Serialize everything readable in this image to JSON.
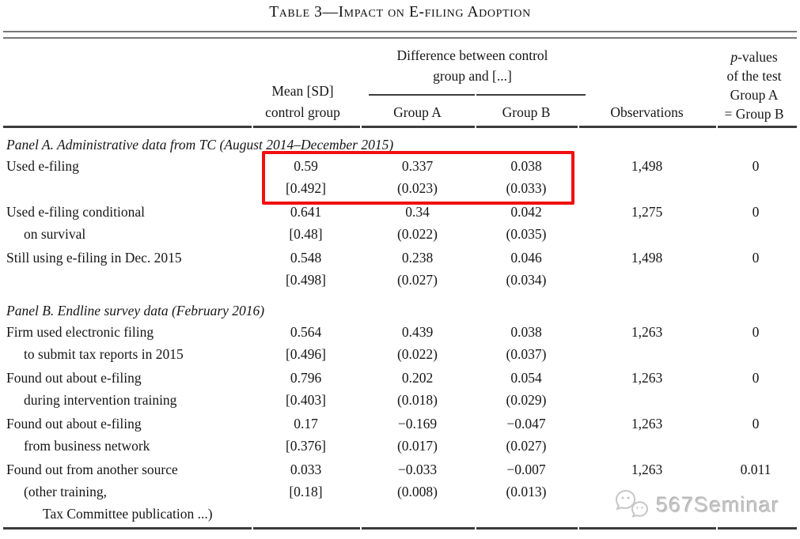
{
  "title": "Table 3—Impact on E-filing Adoption",
  "header": {
    "mean_sd": [
      "Mean [SD]",
      "control group"
    ],
    "diff_group": [
      "Difference between control",
      "group and [...]"
    ],
    "group_a": "Group A",
    "group_b": "Group B",
    "observations": "Observations",
    "pvalues": [
      "p-values",
      "of the test",
      "Group A",
      "= Group B"
    ]
  },
  "panels": [
    {
      "heading": "Panel A.  Administrative data from TC (August 2014–December 2015)",
      "rows": [
        {
          "label": [
            "Used e-filing"
          ],
          "mean": "0.59",
          "sd": "[0.492]",
          "a": "0.337",
          "a_se": "(0.023)",
          "b": "0.038",
          "b_se": "(0.033)",
          "obs": "1,498",
          "p": "0",
          "highlight": true
        },
        {
          "label": [
            "Used e-filing conditional",
            "on survival"
          ],
          "mean": "0.641",
          "sd": "[0.48]",
          "a": "0.34",
          "a_se": "(0.022)",
          "b": "0.042",
          "b_se": "(0.035)",
          "obs": "1,275",
          "p": "0"
        },
        {
          "label": [
            "Still using e-filing in Dec. 2015"
          ],
          "mean": "0.548",
          "sd": "[0.498]",
          "a": "0.238",
          "a_se": "(0.027)",
          "b": "0.046",
          "b_se": "(0.034)",
          "obs": "1,498",
          "p": "0"
        }
      ]
    },
    {
      "heading": "Panel B.  Endline survey data (February 2016)",
      "rows": [
        {
          "label": [
            "Firm used electronic filing",
            "to submit tax reports in 2015"
          ],
          "mean": "0.564",
          "sd": "[0.496]",
          "a": "0.439",
          "a_se": "(0.022)",
          "b": "0.038",
          "b_se": "(0.037)",
          "obs": "1,263",
          "p": "0"
        },
        {
          "label": [
            "Found out about e-filing",
            "during intervention training"
          ],
          "mean": "0.796",
          "sd": "[0.403]",
          "a": "0.202",
          "a_se": "(0.018)",
          "b": "0.054",
          "b_se": "(0.029)",
          "obs": "1,263",
          "p": "0"
        },
        {
          "label": [
            "Found out about e-filing",
            "from business network"
          ],
          "mean": "0.17",
          "sd": "[0.376]",
          "a": "−0.169",
          "a_se": "(0.017)",
          "b": "−0.047",
          "b_se": "(0.027)",
          "obs": "1,263",
          "p": "0"
        },
        {
          "label": [
            "Found out from another source",
            "(other training,",
            "Tax Committee publication ...)"
          ],
          "mean": "0.033",
          "sd": "[0.18]",
          "a": "−0.033",
          "a_se": "(0.008)",
          "b": "−0.007",
          "b_se": "(0.013)",
          "obs": "1,263",
          "p": "0.011"
        }
      ]
    }
  ],
  "annotation": {
    "color": "#f01010"
  },
  "watermark": {
    "text": "567Seminar"
  }
}
